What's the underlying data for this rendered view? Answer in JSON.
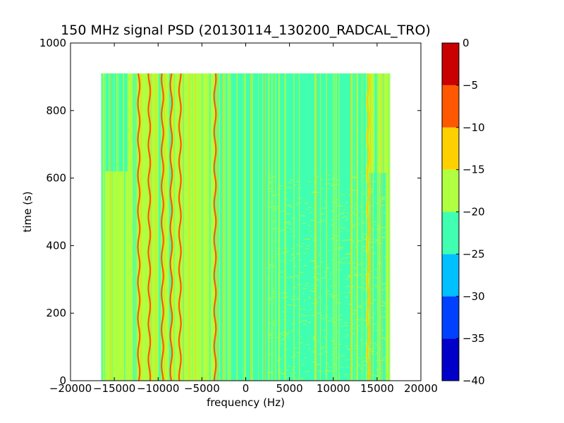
{
  "chart_data": {
    "type": "heatmap",
    "title": "150 MHz signal PSD (20130114_130200_RADCAL_TRO)",
    "xlabel": "frequency (Hz)",
    "ylabel": "time (s)",
    "xlim": [
      -20000,
      20000
    ],
    "ylim": [
      0,
      1000
    ],
    "xticks": [
      -20000,
      -15000,
      -10000,
      -5000,
      0,
      5000,
      10000,
      15000,
      20000
    ],
    "yticks": [
      0,
      200,
      400,
      600,
      800,
      1000
    ],
    "x_tick_labels": [
      "−20000",
      "−15000",
      "−10000",
      "−5000",
      "0",
      "5000",
      "10000",
      "15000",
      "20000"
    ],
    "y_tick_labels": [
      "0",
      "200",
      "400",
      "600",
      "800",
      "1000"
    ],
    "data_extent": {
      "x": [
        -16500,
        16500
      ],
      "y": [
        0,
        910
      ]
    },
    "background_level": [
      -20,
      -15
    ],
    "regions": [
      {
        "x": [
          -3500,
          2500
        ],
        "y": [
          0,
          910
        ],
        "level": [
          -25,
          -20
        ]
      },
      {
        "x": [
          2500,
          16000
        ],
        "y": [
          0,
          615
        ],
        "level": [
          -25,
          -20
        ]
      },
      {
        "x": [
          -2000,
          14000
        ],
        "y": [
          615,
          910
        ],
        "level": [
          -25,
          -20
        ]
      },
      {
        "x": [
          -16000,
          -13500
        ],
        "y": [
          620,
          910
        ],
        "level": [
          -25,
          -20
        ]
      }
    ],
    "strong_lines": [
      {
        "freq": -12200,
        "level": [
          -10,
          -5
        ]
      },
      {
        "freq": -11000,
        "level": [
          -10,
          -5
        ]
      },
      {
        "freq": -9500,
        "level": [
          -10,
          -5
        ]
      },
      {
        "freq": -8500,
        "level": [
          -10,
          -5
        ]
      },
      {
        "freq": -7500,
        "level": [
          -10,
          -5
        ]
      },
      {
        "freq": -3500,
        "level": [
          -10,
          -5
        ]
      },
      {
        "freq": 14000,
        "level": [
          -15,
          -10
        ]
      }
    ],
    "colorbar": {
      "min": -40,
      "max": 0,
      "tick_labels": [
        "−40",
        "−35",
        "−30",
        "−25",
        "−20",
        "−15",
        "−10",
        "−5",
        "0"
      ],
      "levels": [
        {
          "range": [
            -40,
            -35
          ],
          "color": "#0000c8"
        },
        {
          "range": [
            -35,
            -30
          ],
          "color": "#0040ff"
        },
        {
          "range": [
            -30,
            -25
          ],
          "color": "#00c0ff"
        },
        {
          "range": [
            -25,
            -20
          ],
          "color": "#40ffb0"
        },
        {
          "range": [
            -20,
            -15
          ],
          "color": "#b0ff40"
        },
        {
          "range": [
            -15,
            -10
          ],
          "color": "#ffd000"
        },
        {
          "range": [
            -10,
            -5
          ],
          "color": "#ff5800"
        },
        {
          "range": [
            -5,
            0
          ],
          "color": "#c80000"
        }
      ]
    }
  }
}
